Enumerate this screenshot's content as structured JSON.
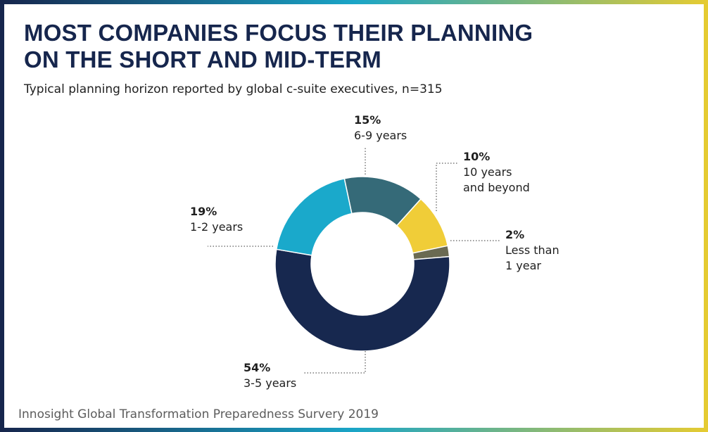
{
  "title_line1": "MOST COMPANIES FOCUS THEIR PLANNING",
  "title_line2": "ON THE SHORT AND MID-TERM",
  "subtitle": "Typical planning horizon reported by global c-suite executives, n=315",
  "source": "Innosight Global Transformation Preparedness Survery 2019",
  "colors": {
    "frame_left": "#16264d",
    "frame_mid": "#1aa5c7",
    "frame_right": "#e5cb32"
  },
  "chart_data": {
    "type": "pie",
    "variant": "donut",
    "slices": [
      {
        "pct_label": "15%",
        "label_lines": [
          "6-9 years"
        ],
        "value": 15,
        "color": "#356a78"
      },
      {
        "pct_label": "10%",
        "label_lines": [
          "10 years",
          "and beyond"
        ],
        "value": 10,
        "color": "#f0cd38"
      },
      {
        "pct_label": "2%",
        "label_lines": [
          "Less than",
          "1 year"
        ],
        "value": 2,
        "color": "#6a6a52"
      },
      {
        "pct_label": "54%",
        "label_lines": [
          "3-5 years"
        ],
        "value": 54,
        "color": "#17284f"
      },
      {
        "pct_label": "19%",
        "label_lines": [
          "1-2 years"
        ],
        "value": 19,
        "color": "#1aa9cb"
      }
    ]
  }
}
